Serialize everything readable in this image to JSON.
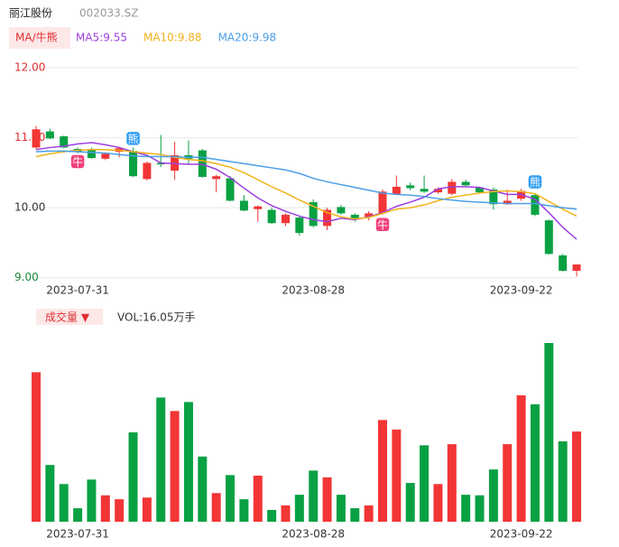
{
  "header": {
    "name": "丽江股份",
    "code": "002033.SZ"
  },
  "chart_data": [
    {
      "type": "candlestick",
      "legend_tag": "MA/牛熊",
      "categories": [
        null,
        null,
        null,
        "2023-07-31",
        null,
        null,
        null,
        null,
        null,
        null,
        null,
        null,
        null,
        null,
        null,
        null,
        null,
        null,
        null,
        null,
        "2023-08-28",
        null,
        null,
        null,
        null,
        null,
        null,
        null,
        null,
        null,
        null,
        null,
        null,
        null,
        null,
        "2023-09-22",
        null,
        null,
        null,
        null
      ],
      "open": [
        10.86,
        11.09,
        11.02,
        10.84,
        10.83,
        10.7,
        10.8,
        10.81,
        10.41,
        10.64,
        10.53,
        10.75,
        10.82,
        10.41,
        10.42,
        10.1,
        9.98,
        9.97,
        9.78,
        9.86,
        10.08,
        9.74,
        10.01,
        9.9,
        9.87,
        9.92,
        10.19,
        10.32,
        10.27,
        10.22,
        10.2,
        10.37,
        10.29,
        10.26,
        10.05,
        10.13,
        10.18,
        9.82,
        9.32,
        9.1
      ],
      "close": [
        11.12,
        10.99,
        10.86,
        10.8,
        10.71,
        10.77,
        10.85,
        10.45,
        10.64,
        10.62,
        10.75,
        10.7,
        10.44,
        10.45,
        10.1,
        9.96,
        10.02,
        9.78,
        9.9,
        9.64,
        9.74,
        9.97,
        9.92,
        9.85,
        9.92,
        10.23,
        10.3,
        10.28,
        10.23,
        10.27,
        10.37,
        10.32,
        10.22,
        10.05,
        10.1,
        10.24,
        9.9,
        9.34,
        9.1,
        9.19
      ],
      "high": [
        11.17,
        11.13,
        11.03,
        10.86,
        10.86,
        10.79,
        10.86,
        10.86,
        10.66,
        11.04,
        10.94,
        10.96,
        10.84,
        10.47,
        10.45,
        10.18,
        10.03,
        10.0,
        9.92,
        9.88,
        10.12,
        10.0,
        10.04,
        9.92,
        9.95,
        10.26,
        10.46,
        10.36,
        10.46,
        10.29,
        10.41,
        10.4,
        10.3,
        10.29,
        10.26,
        10.27,
        10.2,
        9.83,
        9.34,
        9.19
      ],
      "low": [
        10.84,
        10.98,
        10.85,
        10.78,
        10.7,
        10.68,
        10.72,
        10.44,
        10.39,
        10.58,
        10.4,
        10.62,
        10.43,
        10.22,
        10.09,
        9.95,
        9.8,
        9.77,
        9.74,
        9.6,
        9.72,
        9.68,
        9.9,
        9.8,
        9.82,
        9.9,
        10.18,
        10.25,
        10.21,
        10.2,
        10.18,
        10.3,
        10.2,
        9.97,
        10.04,
        10.1,
        9.88,
        9.33,
        9.09,
        9.02
      ],
      "up_color": "#f23535",
      "down_color": "#0aa143",
      "series": [
        {
          "name": "MA5:9.55",
          "color": "#9b3fe0",
          "values": [
            10.83,
            10.86,
            10.88,
            10.91,
            10.93,
            10.9,
            10.86,
            10.8,
            10.75,
            10.64,
            10.63,
            10.62,
            10.62,
            10.55,
            10.43,
            10.28,
            10.14,
            10.03,
            9.95,
            9.88,
            9.83,
            9.8,
            9.85,
            9.83,
            9.87,
            9.93,
            10.02,
            10.08,
            10.15,
            10.27,
            10.3,
            10.3,
            10.29,
            10.24,
            10.19,
            10.19,
            10.12,
            9.93,
            9.72,
            9.55
          ]
        },
        {
          "name": "MA10:9.88",
          "color": "#f0b31a",
          "values": [
            10.73,
            10.77,
            10.8,
            10.82,
            10.83,
            10.83,
            10.82,
            10.8,
            10.78,
            10.76,
            10.72,
            10.69,
            10.67,
            10.63,
            10.58,
            10.5,
            10.4,
            10.3,
            10.21,
            10.11,
            10.02,
            9.93,
            9.87,
            9.84,
            9.86,
            9.92,
            9.98,
            10.0,
            10.04,
            10.1,
            10.15,
            10.18,
            10.21,
            10.23,
            10.24,
            10.23,
            10.2,
            10.09,
            9.98,
            9.88
          ]
        },
        {
          "name": "MA20:9.98",
          "color": "#4a9ee8",
          "values": [
            10.8,
            10.81,
            10.81,
            10.8,
            10.79,
            10.78,
            10.76,
            10.74,
            10.73,
            10.73,
            10.73,
            10.72,
            10.72,
            10.69,
            10.66,
            10.63,
            10.6,
            10.57,
            10.54,
            10.49,
            10.42,
            10.37,
            10.33,
            10.29,
            10.25,
            10.21,
            10.19,
            10.18,
            10.16,
            10.13,
            10.11,
            10.09,
            10.08,
            10.07,
            10.06,
            10.06,
            10.06,
            10.03,
            10.0,
            9.98
          ]
        }
      ],
      "annotations": [
        {
          "index": 3,
          "price": 10.66,
          "label": "牛",
          "color": "#f0407a"
        },
        {
          "index": 7,
          "price": 10.99,
          "label": "熊",
          "color": "#2a9bf0"
        },
        {
          "index": 25,
          "price": 9.76,
          "label": "牛",
          "color": "#f0407a"
        },
        {
          "index": 36,
          "price": 10.37,
          "label": "熊",
          "color": "#2a9bf0"
        }
      ],
      "ylim": [
        8.99,
        12.0
      ],
      "yticks": [
        {
          "value": 9,
          "label": "9.00"
        },
        {
          "value": 10,
          "label": "10.00"
        },
        {
          "value": 11,
          "label": "11.00"
        },
        {
          "value": 12,
          "label": "12.00"
        }
      ],
      "grid": true
    },
    {
      "type": "volume",
      "title": "成交量 ▼",
      "subtitle": "VOL:16.05万手",
      "values": [
        26.6,
        10.1,
        6.7,
        2.4,
        7.5,
        4.7,
        4.0,
        15.9,
        4.3,
        22.1,
        19.7,
        21.3,
        11.6,
        5.1,
        8.3,
        4.0,
        8.2,
        2.1,
        2.9,
        4.8,
        9.1,
        7.9,
        4.8,
        2.4,
        2.9,
        18.1,
        16.4,
        6.9,
        13.6,
        6.7,
        13.8,
        4.8,
        4.7,
        9.3,
        13.8,
        22.5,
        20.9,
        31.8,
        14.3,
        16.05
      ]
    }
  ]
}
